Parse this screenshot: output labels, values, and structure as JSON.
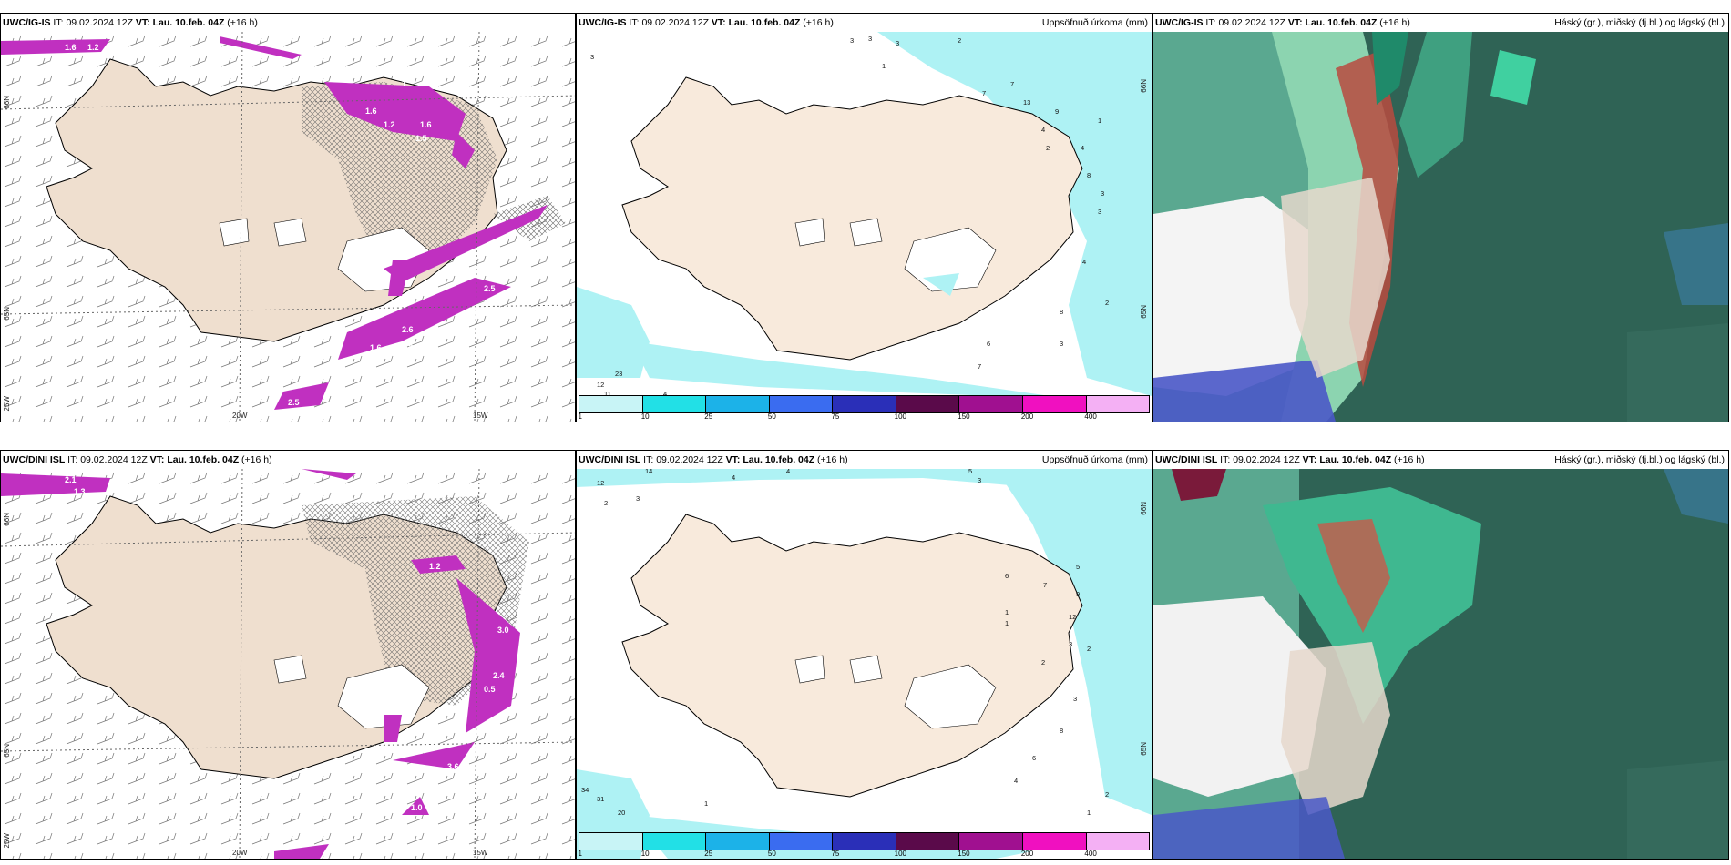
{
  "rows": [
    {
      "model": "UWC/IG-IS",
      "it_label": "IT:",
      "it_value": "09.02.2024 12Z",
      "vt_label": "VT:",
      "vt_value": "Lau. 10.feb. 04Z",
      "lead": "(+16 h)"
    },
    {
      "model": "UWC/DINI ISL",
      "it_label": "IT:",
      "it_value": "09.02.2024 12Z",
      "vt_label": "VT:",
      "vt_value": "Lau. 10.feb. 04Z",
      "lead": "(+16 h)"
    }
  ],
  "precip_title": "Uppsöfnuð úrkoma (mm)",
  "cloud_title": "Háský (gr.), miðský (fj.bl.) og lágský (bl.)",
  "axis_labels": {
    "lat66_left": "66N",
    "lat65_left": "65N",
    "lon20": "20W",
    "lon15": "15W",
    "lon25": "25W",
    "lat66_right": "66N",
    "lat65_right": "65N"
  },
  "colorbar": {
    "ticks": [
      "1",
      "10",
      "25",
      "50",
      "75",
      "100",
      "150",
      "200",
      "400"
    ],
    "colors": [
      "#c8f4f6",
      "#22e0e6",
      "#1cb2e8",
      "#3a6cf0",
      "#2a2fb8",
      "#5a0a4a",
      "#a01090",
      "#f010c0",
      "#f4b0f4"
    ]
  },
  "top_left_values": [
    "1.6",
    "1.2",
    "1.6",
    "1.2",
    "1.6",
    "1.5",
    "1",
    "2.5",
    "1.6",
    "2.6",
    "1.3",
    "2.5",
    "0.9"
  ],
  "top_mid_values": [
    "3",
    "3",
    "3",
    "3",
    "2",
    "1",
    "13",
    "7",
    "7",
    "9",
    "4",
    "4",
    "2",
    "1",
    "8",
    "3",
    "3",
    "4",
    "2",
    "6",
    "8",
    "3",
    "7",
    "23",
    "12",
    "11",
    "4"
  ],
  "bottom_left_values": [
    "2.1",
    "1.3",
    "1.2",
    "3.0",
    "2.4",
    "0.5",
    "3.6",
    "1.0"
  ],
  "bottom_mid_values": [
    "12",
    "14",
    "4",
    "4",
    "5",
    "3",
    "2",
    "3",
    "6",
    "7",
    "5",
    "9",
    "12",
    "3",
    "2",
    "2",
    "3",
    "1",
    "1",
    "8",
    "6",
    "4",
    "2",
    "34",
    "31",
    "20",
    "1",
    "1"
  ]
}
